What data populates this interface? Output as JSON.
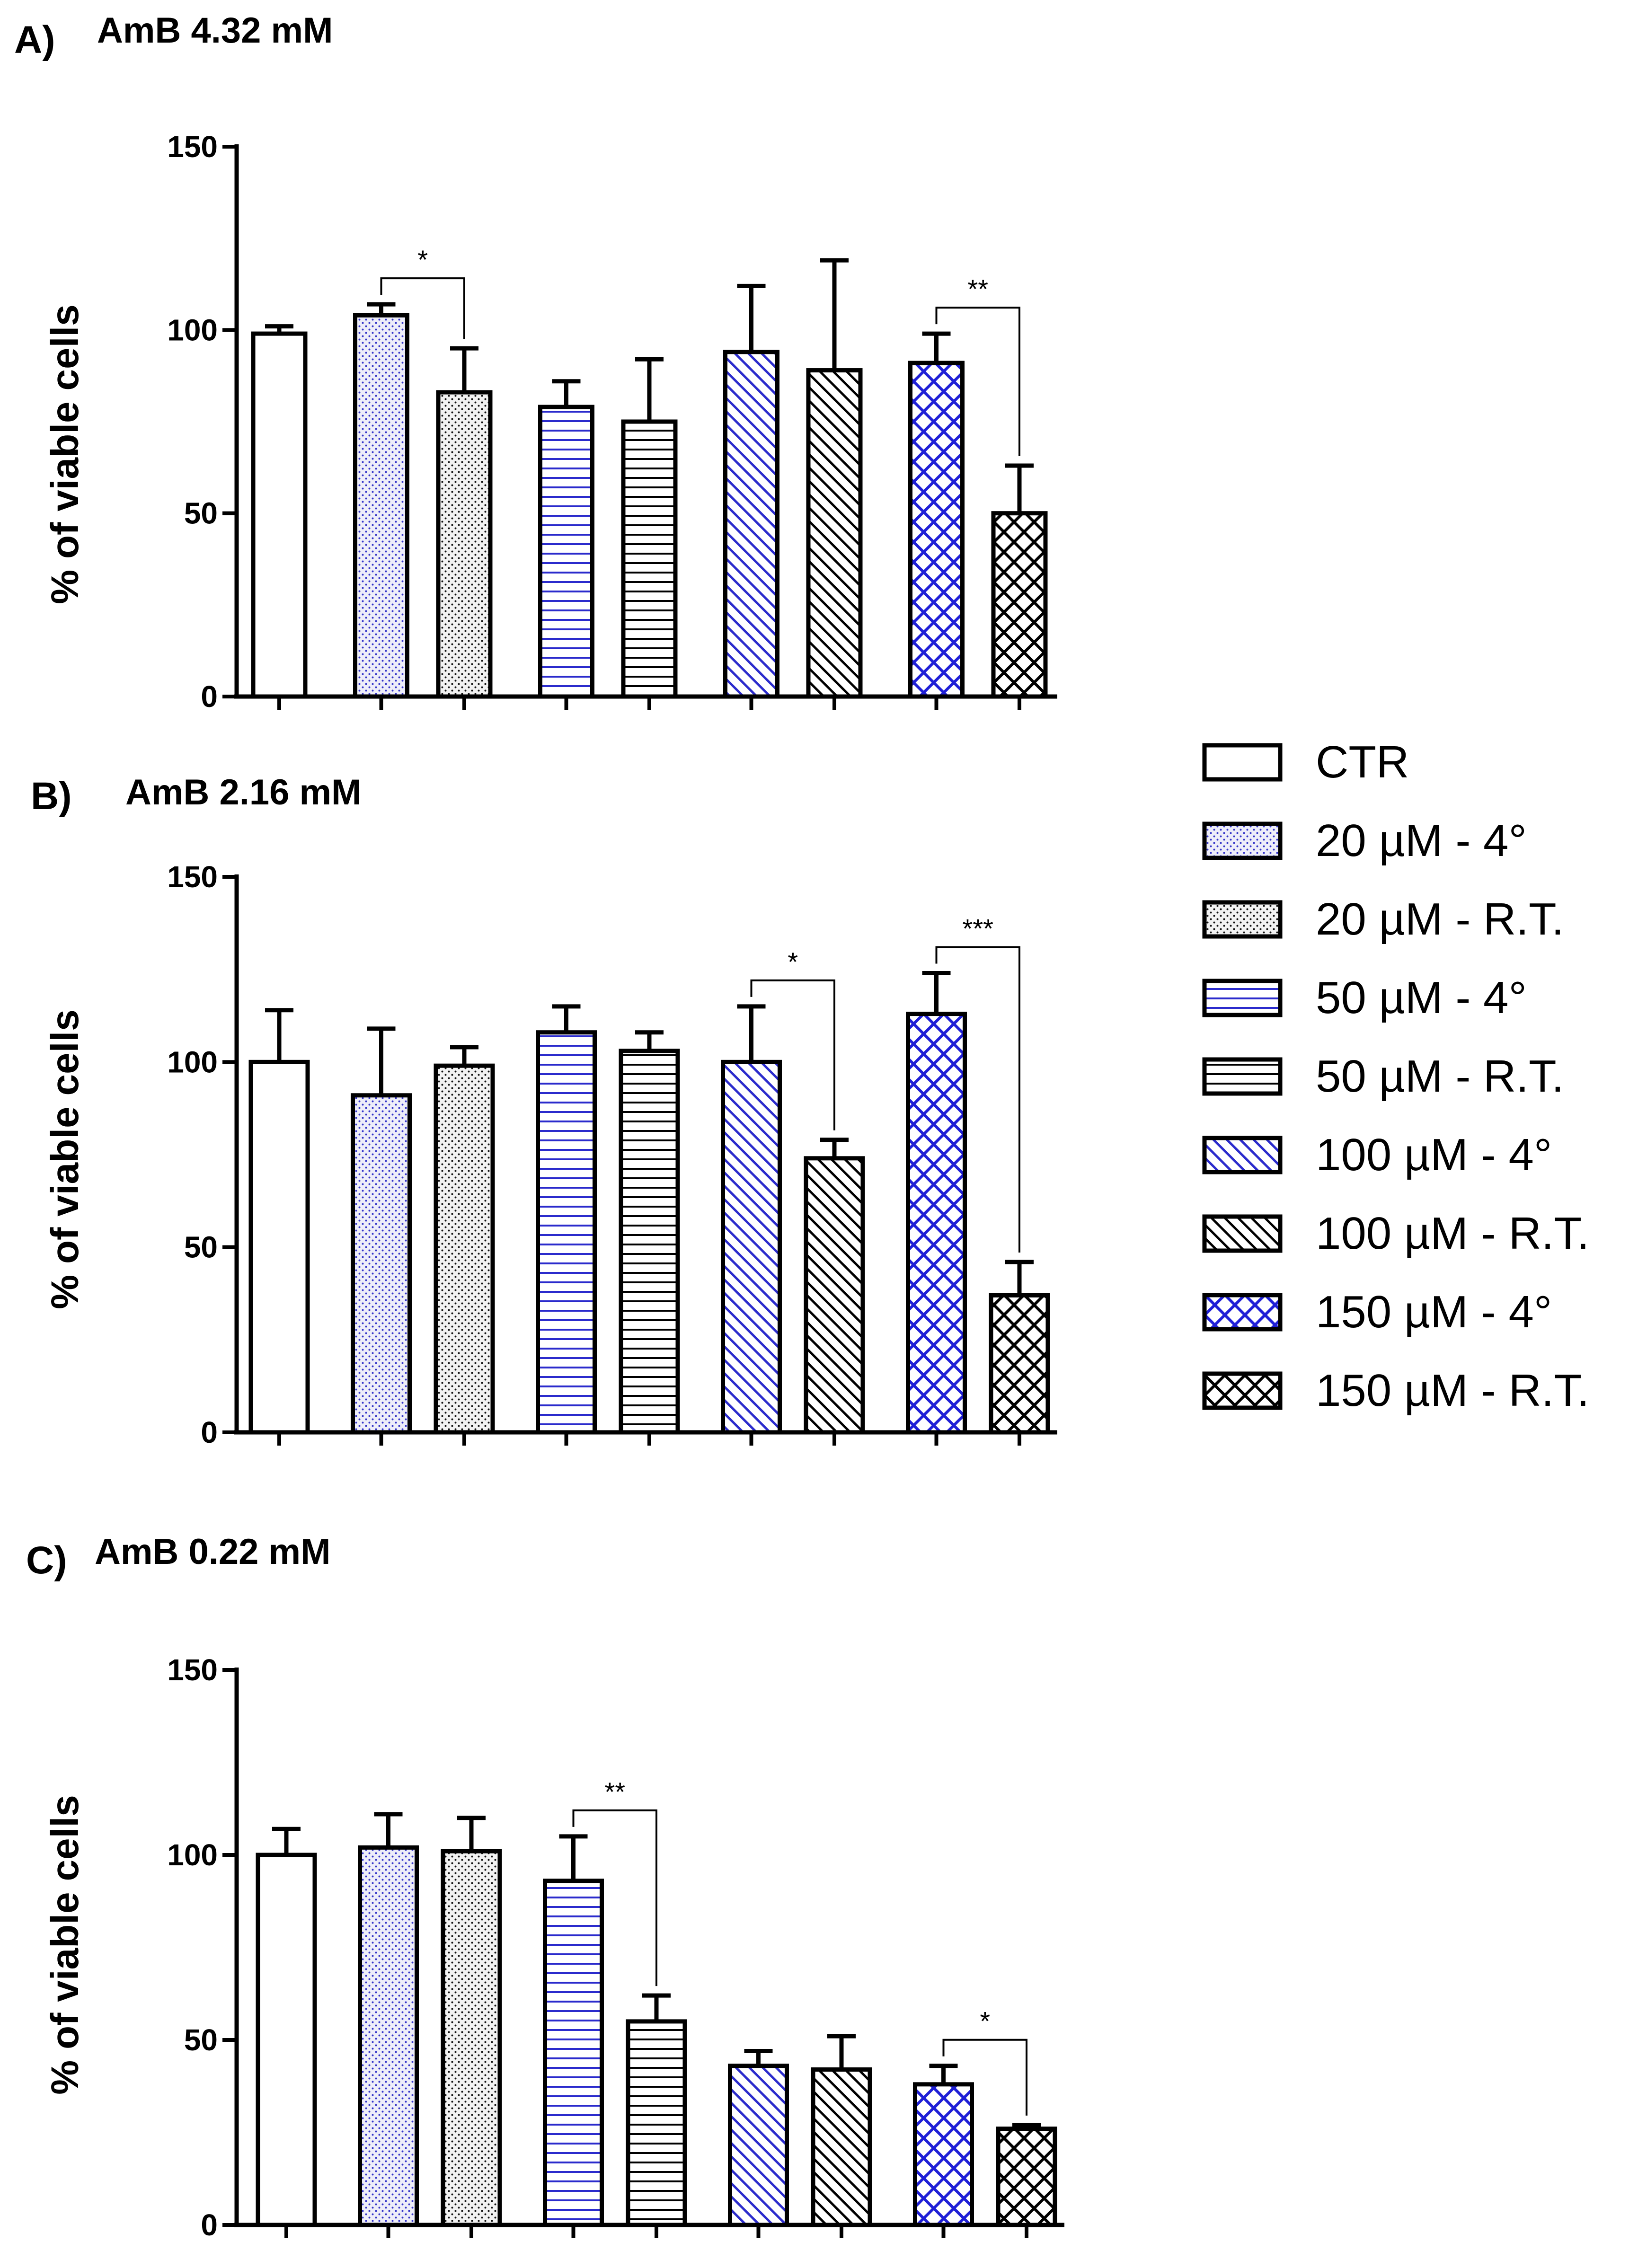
{
  "legend": [
    {
      "label": "CTR",
      "pattern": "white"
    },
    {
      "label": "20 µM - 4°",
      "pattern": "dots-blue"
    },
    {
      "label": "20 µM - R.T.",
      "pattern": "dots-black"
    },
    {
      "label": "50 µM - 4°",
      "pattern": "hlines-blue"
    },
    {
      "label": "50 µM - R.T.",
      "pattern": "hlines-black"
    },
    {
      "label": "100 µM - 4°",
      "pattern": "diag-blue"
    },
    {
      "label": "100 µM - R.T.",
      "pattern": "diag-black"
    },
    {
      "label": "150 µM - 4°",
      "pattern": "cross-blue"
    },
    {
      "label": "150 µM - R.T.",
      "pattern": "cross-black"
    }
  ],
  "colors": {
    "blue": "#2b2bcc",
    "black": "#000000",
    "blue_fill": "#e6e6f7",
    "black_fill": "#ececec"
  },
  "chart_data": [
    {
      "type": "bar",
      "panel": "A)",
      "title": "AmB 4.32 mM",
      "ylabel": "% of viable cells",
      "ylim": [
        0,
        150
      ],
      "yticks": [
        "0",
        "50",
        "100",
        "150"
      ],
      "categories": [
        "CTR",
        "20 µM - 4°",
        "20 µM - R.T.",
        "50 µM - 4°",
        "50 µM - R.T.",
        "100 µM - 4°",
        "100 µM - R.T.",
        "150 µM - 4°",
        "150 µM - R.T."
      ],
      "values": [
        99,
        104,
        83,
        79,
        75,
        94,
        89,
        91,
        50
      ],
      "errors": [
        2,
        3,
        12,
        7,
        17,
        18,
        30,
        8,
        13
      ],
      "significance": [
        {
          "from": 1,
          "to": 2,
          "label": "*"
        },
        {
          "from": 7,
          "to": 8,
          "label": "**"
        }
      ]
    },
    {
      "type": "bar",
      "panel": "B)",
      "title": "AmB 2.16 mM",
      "ylabel": "% of viable cells",
      "ylim": [
        0,
        150
      ],
      "yticks": [
        "0",
        "50",
        "100",
        "150"
      ],
      "categories": [
        "CTR",
        "20 µM - 4°",
        "20 µM - R.T.",
        "50 µM - 4°",
        "50 µM - R.T.",
        "100 µM - 4°",
        "100 µM - R.T.",
        "150 µM - 4°",
        "150 µM - R.T."
      ],
      "values": [
        100,
        91,
        99,
        108,
        103,
        100,
        74,
        113,
        37
      ],
      "errors": [
        14,
        18,
        5,
        7,
        5,
        15,
        5,
        11,
        9
      ],
      "significance": [
        {
          "from": 5,
          "to": 6,
          "label": "*"
        },
        {
          "from": 7,
          "to": 8,
          "label": "***"
        }
      ]
    },
    {
      "type": "bar",
      "panel": "C)",
      "title": "AmB 0.22 mM",
      "ylabel": "% of viable cells",
      "ylim": [
        0,
        150
      ],
      "yticks": [
        "0",
        "50",
        "100",
        "150"
      ],
      "categories": [
        "CTR",
        "20 µM - 4°",
        "20 µM - R.T.",
        "50 µM - 4°",
        "50 µM - R.T.",
        "100 µM - 4°",
        "100 µM - R.T.",
        "150 µM - 4°",
        "150 µM - R.T."
      ],
      "values": [
        100,
        102,
        101,
        93,
        55,
        43,
        42,
        38,
        26
      ],
      "errors": [
        7,
        9,
        9,
        12,
        7,
        4,
        9,
        5,
        1
      ],
      "significance": [
        {
          "from": 3,
          "to": 4,
          "label": "**"
        },
        {
          "from": 7,
          "to": 8,
          "label": "*"
        }
      ]
    }
  ]
}
